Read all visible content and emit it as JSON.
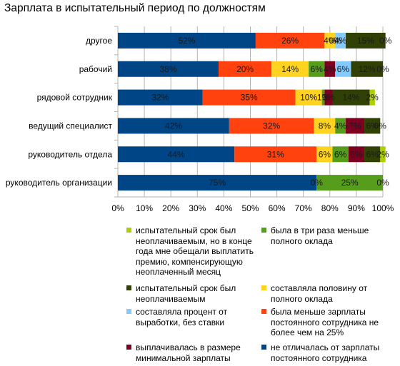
{
  "chart_data": {
    "type": "bar",
    "orientation": "horizontal",
    "stacked": true,
    "title": "Зарплата в испытательный период по должностям",
    "categories": [
      "другое",
      "рабочий",
      "рядовой сотрудник",
      "ведущий специалист",
      "руководитель отдела",
      "руководитель организации"
    ],
    "xlim": [
      0,
      100
    ],
    "xticks": [
      "0%",
      "10%",
      "20%",
      "30%",
      "40%",
      "50%",
      "60%",
      "70%",
      "80%",
      "90%",
      "100%"
    ],
    "grid": true,
    "legend_position": "bottom",
    "series": [
      {
        "name": "не отличалась от зарплаты постоянного сотрудника",
        "color": "#004586",
        "values": [
          52,
          38,
          32,
          42,
          44,
          75
        ],
        "labels": [
          "52%",
          "38%",
          "32%",
          "42%",
          "44%",
          "75%"
        ]
      },
      {
        "name": "была меньше зарплаты постоянного сотрудника не более чем на 25%",
        "color": "#ff420e",
        "values": [
          26,
          20,
          35,
          32,
          31,
          0
        ],
        "labels": [
          "26%",
          "20%",
          "35%",
          "32%",
          "31%",
          "0%"
        ]
      },
      {
        "name": "составляла половину от полного оклада",
        "color": "#ffd320",
        "values": [
          4,
          14,
          10,
          8,
          6,
          0
        ],
        "labels": [
          "4%",
          "14%",
          "10%",
          "8%",
          "6%",
          ""
        ]
      },
      {
        "name": "была в три раза меньше полного оклада",
        "color": "#579d1c",
        "values": [
          0,
          6,
          1,
          4,
          6,
          25
        ],
        "labels": [
          "0%",
          "6%",
          "1%",
          "4%",
          "6%",
          "25%"
        ]
      },
      {
        "name": "выплачивалась в размере минимальной зарплаты",
        "color": "#7e0021",
        "values": [
          0,
          4,
          3,
          7,
          6,
          0
        ],
        "labels": [
          "",
          "4%",
          "3%",
          "7%",
          "6%",
          ""
        ]
      },
      {
        "name": "составляла процент от выработки, без ставки",
        "color": "#83caff",
        "values": [
          4,
          6,
          0,
          0,
          0,
          0
        ],
        "labels": [
          "4%",
          "6%",
          "",
          "",
          "",
          ""
        ]
      },
      {
        "name": "испытательный срок был неоплачиваемым",
        "color": "#314004",
        "values": [
          15,
          12,
          14,
          6,
          6,
          0
        ],
        "labels": [
          "15%",
          "12%",
          "14%",
          "6%",
          "6%",
          ""
        ]
      },
      {
        "name": "испытательный срок был неоплачиваемым, но в конце года мне обещали выплатить премию, компенсирующую неоплаченный месяц",
        "color": "#aecf00",
        "values": [
          0,
          0,
          2,
          0,
          2,
          0
        ],
        "labels": [
          "0%",
          "0%",
          "2%",
          "0%",
          "2%",
          "0%"
        ]
      }
    ]
  }
}
